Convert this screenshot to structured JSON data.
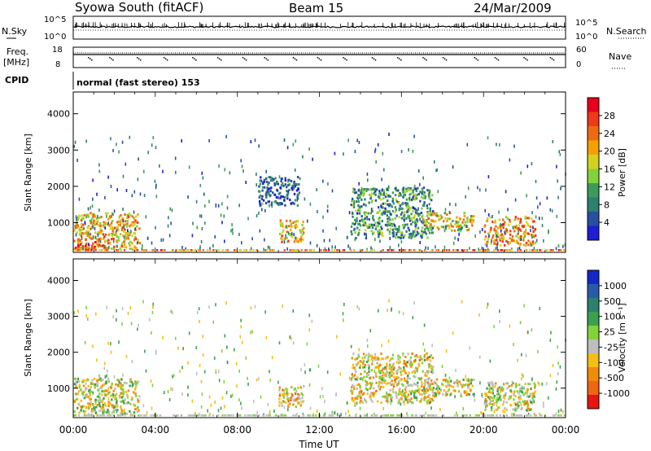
{
  "header": {
    "station": "Syowa South (fitACF)",
    "beam": "Beam 15",
    "date": "24/Mar/2009"
  },
  "strip_noise": {
    "left_label": "N.Sky",
    "right_label": "N.Search",
    "left_ticks": [
      "10^5",
      "10^0"
    ],
    "right_ticks": [
      "10^5",
      "10^0"
    ]
  },
  "strip_freq": {
    "left_label_top": "Freq.",
    "left_label_bottom": "[MHz]",
    "right_label": "Nave",
    "left_ticks": [
      "18",
      "8"
    ],
    "right_ticks": [
      "60",
      "0"
    ]
  },
  "cpid": {
    "label": "CPID",
    "text": "normal (fast stereo) 153"
  },
  "power_scale": {
    "title": "Power [dB]",
    "labels": [
      "28",
      "24",
      "20",
      "16",
      "12",
      "8",
      "4"
    ],
    "colors": [
      "#e8001c",
      "#f0381a",
      "#f06a12",
      "#f5a000",
      "#d2d21e",
      "#82d23c",
      "#3c9b5a",
      "#2d7f6e",
      "#2850a0",
      "#1e1ed2"
    ]
  },
  "velocity_scale": {
    "title": "Velocity [m s⁻¹]",
    "labels": [
      "1000",
      "500",
      "100",
      "25",
      "-25",
      "-100",
      "-500",
      "-1000"
    ],
    "colors": [
      "#1428c8",
      "#285aaa",
      "#2d7f6e",
      "#3ca050",
      "#82d23c",
      "#bebebe",
      "#f5be14",
      "#f08c0a",
      "#f06414",
      "#e81414"
    ]
  },
  "chart_data": [
    {
      "type": "heatmap",
      "quantity": "Power",
      "ylabel": "Slant Range [km]",
      "ylim": [
        180,
        4600
      ],
      "yticks": [
        "1000",
        "2000",
        "3000",
        "4000"
      ],
      "clim": [
        0,
        32
      ],
      "xlim": [
        "00:00",
        "24:00"
      ],
      "regions": [
        {
          "t": [
            0.0,
            3.2
          ],
          "r": [
            300,
            1300
          ],
          "level": 20
        },
        {
          "t": [
            0.0,
            1.5
          ],
          "r": [
            300,
            600
          ],
          "level": 26
        },
        {
          "t": [
            10.0,
            11.2
          ],
          "r": [
            500,
            1100
          ],
          "level": 20
        },
        {
          "t": [
            13.5,
            17.5
          ],
          "r": [
            600,
            2000
          ],
          "level": 10
        },
        {
          "t": [
            17.0,
            19.5
          ],
          "r": [
            800,
            1300
          ],
          "level": 18
        },
        {
          "t": [
            20.0,
            22.5
          ],
          "r": [
            400,
            1200
          ],
          "level": 22
        },
        {
          "t": [
            9.0,
            11.0
          ],
          "r": [
            1500,
            2300
          ],
          "level": 6
        }
      ]
    },
    {
      "type": "heatmap",
      "quantity": "Velocity",
      "xlabel": "Time UT",
      "ylabel": "Slant Range [km]",
      "ylim": [
        180,
        4600
      ],
      "yticks": [
        "1000",
        "2000",
        "3000",
        "4000"
      ],
      "xticks": [
        "00:00",
        "04:00",
        "08:00",
        "12:00",
        "16:00",
        "20:00",
        "00:00"
      ],
      "clim": [
        -1000,
        1000
      ],
      "regions": [
        {
          "t": [
            0.0,
            3.2
          ],
          "r": [
            300,
            1300
          ],
          "level": -100
        },
        {
          "t": [
            10.0,
            11.2
          ],
          "r": [
            500,
            1100
          ],
          "level": -300
        },
        {
          "t": [
            13.5,
            17.5
          ],
          "r": [
            600,
            2000
          ],
          "level": -200
        },
        {
          "t": [
            17.0,
            19.5
          ],
          "r": [
            800,
            1300
          ],
          "level": -150
        },
        {
          "t": [
            20.0,
            22.5
          ],
          "r": [
            400,
            1200
          ],
          "level": -100
        }
      ]
    }
  ]
}
